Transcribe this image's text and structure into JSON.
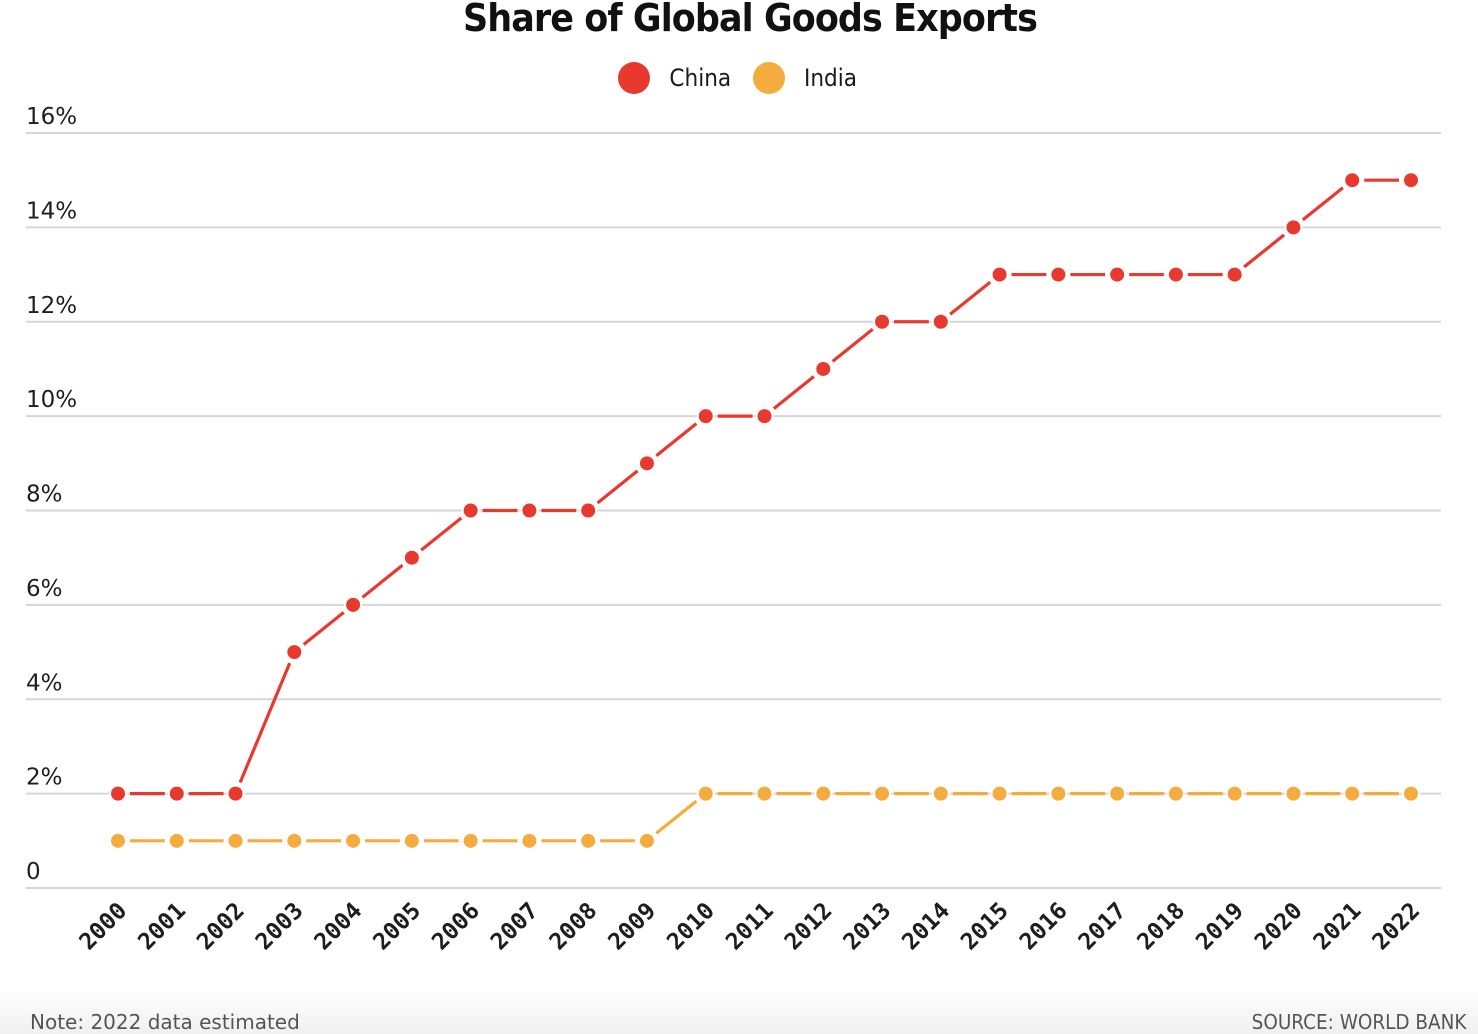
{
  "chart_data": {
    "type": "line",
    "title": "Share of Global Goods Exports",
    "xlabel": "",
    "ylabel": "",
    "x": [
      "2000",
      "2001",
      "2002",
      "2003",
      "2004",
      "2005",
      "2006",
      "2007",
      "2008",
      "2009",
      "2010",
      "2011",
      "2012",
      "2013",
      "2014",
      "2015",
      "2016",
      "2017",
      "2018",
      "2019",
      "2020",
      "2021",
      "2022"
    ],
    "series": [
      {
        "name": "China",
        "color": "#e8392f",
        "values": [
          2,
          2,
          2,
          5,
          6,
          7,
          8,
          8,
          8,
          9,
          10,
          10,
          11,
          12,
          12,
          13,
          13,
          13,
          13,
          13,
          14,
          15,
          15
        ]
      },
      {
        "name": "India",
        "color": "#f5ac3e",
        "values": [
          1,
          1,
          1,
          1,
          1,
          1,
          1,
          1,
          1,
          1,
          2,
          2,
          2,
          2,
          2,
          2,
          2,
          2,
          2,
          2,
          2,
          2,
          2
        ]
      }
    ],
    "ylim": [
      0,
      16
    ],
    "yticks": [
      0,
      2,
      4,
      6,
      8,
      10,
      12,
      14,
      16
    ],
    "ytick_labels": [
      "0",
      "2%",
      "4%",
      "6%",
      "8%",
      "10%",
      "12%",
      "14%",
      "16%"
    ],
    "grid": true,
    "legend_position": "top-center"
  },
  "header": {
    "title": "Share of Global Goods Exports"
  },
  "legend": [
    {
      "label": "China",
      "color": "#e8392f"
    },
    {
      "label": "India",
      "color": "#f5ac3e"
    }
  ],
  "footer": {
    "note": "Note: 2022 data estimated",
    "source": "SOURCE: WORLD BANK"
  }
}
